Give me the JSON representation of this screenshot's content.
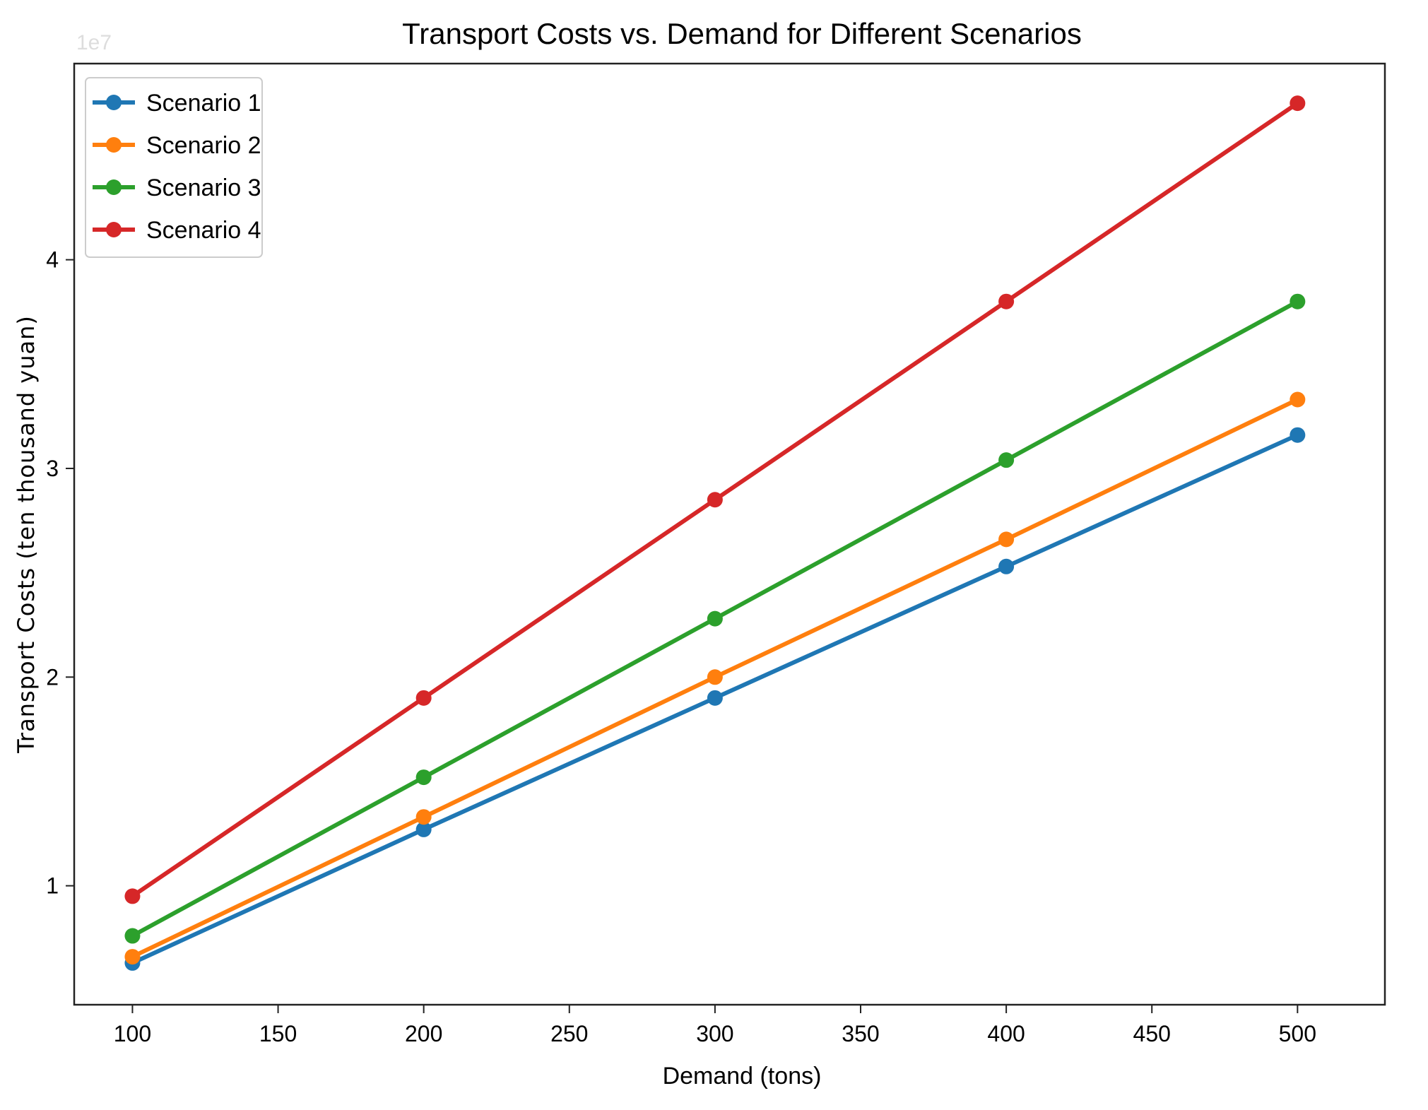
{
  "chart_data": {
    "type": "line",
    "title": "Transport Costs vs. Demand for Different Scenarios",
    "xlabel": "Demand (tons)",
    "ylabel": "Transport Costs (ten thousand yuan)",
    "y_offset_label": "1e7",
    "xlim": [
      80,
      530
    ],
    "ylim": [
      0.43,
      4.94
    ],
    "x_ticks": [
      100,
      150,
      200,
      250,
      300,
      350,
      400,
      450,
      500
    ],
    "y_ticks": [
      1,
      2,
      3,
      4
    ],
    "grid": false,
    "legend_position": "upper-left",
    "x": [
      100,
      200,
      300,
      400,
      500
    ],
    "series": [
      {
        "name": "Scenario 1",
        "color": "#1f77b4",
        "values": [
          0.63,
          1.27,
          1.9,
          2.53,
          3.16
        ]
      },
      {
        "name": "Scenario 2",
        "color": "#ff7f0e",
        "values": [
          0.66,
          1.33,
          2.0,
          2.66,
          3.33
        ]
      },
      {
        "name": "Scenario 3",
        "color": "#2ca02c",
        "values": [
          0.76,
          1.52,
          2.28,
          3.04,
          3.8
        ]
      },
      {
        "name": "Scenario 4",
        "color": "#d62728",
        "values": [
          0.95,
          1.9,
          2.85,
          3.8,
          4.75
        ]
      }
    ]
  }
}
